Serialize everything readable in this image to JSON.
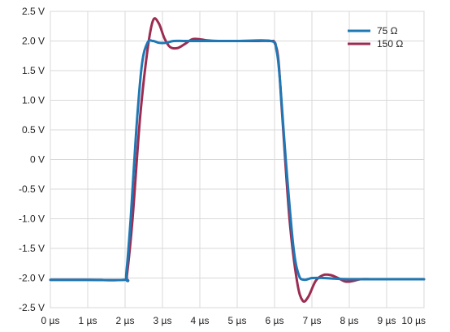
{
  "chart_data": {
    "type": "line",
    "title": "",
    "xlabel": "",
    "ylabel": "",
    "xlim": [
      0,
      10
    ],
    "ylim": [
      -2.5,
      2.5
    ],
    "grid": true,
    "legend_position": "top-right",
    "x_ticks": [
      0,
      1,
      2,
      3,
      4,
      5,
      6,
      7,
      8,
      9,
      10
    ],
    "x_tick_labels": [
      "0 µs",
      "1 µs",
      "2 µs",
      "3 µs",
      "4 µs",
      "5 µs",
      "6 µs",
      "7 µs",
      "8 µs",
      "9 µs",
      "10 µs"
    ],
    "y_ticks": [
      2.5,
      2.0,
      1.5,
      1.0,
      0.5,
      0,
      -0.5,
      -1.0,
      -1.5,
      -2.0,
      -2.5
    ],
    "y_tick_labels": [
      "2.5 V",
      "2.0 V",
      "1.5 V",
      "1.0 V",
      "0.5 V",
      "0 V",
      "-0.5 V",
      "-1.0 V",
      "-1.5 V",
      "-2.0 V",
      "-2.5 V"
    ],
    "series": [
      {
        "name": "150 Ω",
        "color": "#9b2d52",
        "x": [
          0,
          1,
          2.0,
          2.05,
          2.2,
          2.4,
          2.6,
          2.75,
          2.9,
          3.05,
          3.2,
          3.4,
          3.6,
          3.8,
          4.0,
          4.2,
          4.5,
          5.0,
          5.5,
          5.9,
          6.0,
          6.1,
          6.2,
          6.4,
          6.6,
          6.75,
          6.9,
          7.1,
          7.3,
          7.5,
          7.7,
          7.9,
          8.1,
          8.3,
          8.6,
          9.0,
          10
        ],
        "y": [
          -2.03,
          -2.03,
          -2.03,
          -1.95,
          -1.0,
          0.7,
          1.85,
          2.35,
          2.3,
          2.05,
          1.9,
          1.88,
          1.95,
          2.03,
          2.03,
          2.01,
          2.0,
          2.0,
          2.0,
          2.0,
          1.97,
          1.7,
          0.8,
          -1.0,
          -2.05,
          -2.38,
          -2.32,
          -2.05,
          -1.95,
          -1.95,
          -2.0,
          -2.06,
          -2.05,
          -2.02,
          -2.02,
          -2.02,
          -2.02
        ]
      },
      {
        "name": "75 Ω",
        "color": "#1f78b4",
        "x": [
          0,
          1,
          2.0,
          2.03,
          2.15,
          2.3,
          2.45,
          2.6,
          2.75,
          2.9,
          3.1,
          3.3,
          3.6,
          4.0,
          5.0,
          5.9,
          6.05,
          6.15,
          6.3,
          6.5,
          6.65,
          6.8,
          7.0,
          7.3,
          7.6,
          8.0,
          9.0,
          10
        ],
        "y": [
          -2.03,
          -2.03,
          -2.03,
          -1.95,
          -1.0,
          0.5,
          1.6,
          1.97,
          2.0,
          1.97,
          1.97,
          2.0,
          2.0,
          2.0,
          2.0,
          2.0,
          1.85,
          1.3,
          0.0,
          -1.45,
          -1.95,
          -2.03,
          -2.0,
          -2.0,
          -2.01,
          -2.02,
          -2.02,
          -2.02
        ]
      }
    ],
    "legend": [
      {
        "label": "75 Ω",
        "color": "#1f78b4"
      },
      {
        "label": "150 Ω",
        "color": "#9b2d52"
      }
    ]
  }
}
